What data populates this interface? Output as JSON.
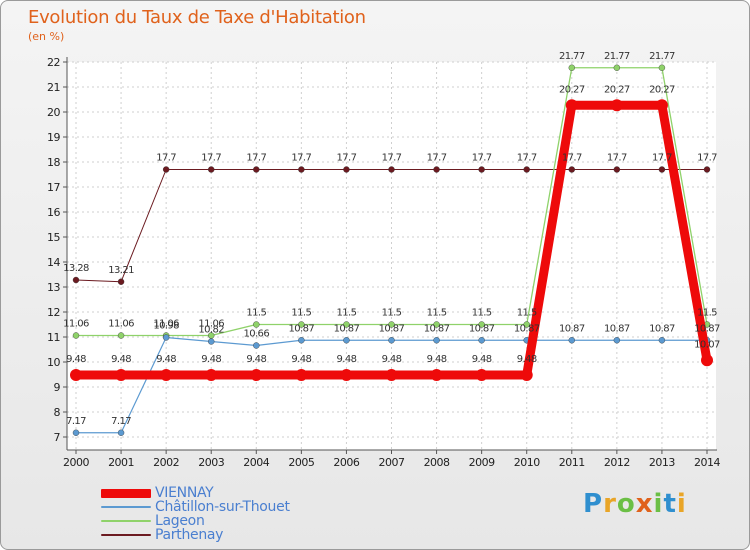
{
  "title": "Evolution du Taux de Taxe d'Habitation",
  "unit": "(en %)",
  "logo": {
    "letters": [
      "P",
      "r",
      "o",
      "x",
      "i",
      "t",
      "i"
    ],
    "colors": [
      "#2f8fcf",
      "#e9a527",
      "#6bbf45",
      "#e0621c",
      "#6bbf45",
      "#2f8fcf",
      "#e9a527"
    ]
  },
  "chart_data": {
    "type": "line",
    "title": "Evolution du Taux de Taxe d'Habitation",
    "ylabel": "(en %)",
    "xlabel": "",
    "x": [
      2000,
      2001,
      2002,
      2003,
      2004,
      2005,
      2006,
      2007,
      2008,
      2009,
      2010,
      2011,
      2012,
      2013,
      2014
    ],
    "ylim": [
      7,
      22
    ],
    "yticks": [
      7,
      8,
      9,
      10,
      11,
      12,
      13,
      14,
      15,
      16,
      17,
      18,
      19,
      20,
      21,
      22
    ],
    "grid": true,
    "legend_position": "bottom-left",
    "series": [
      {
        "name": "Parthenay",
        "color": "#6b1a20",
        "width": 1,
        "values": [
          13.28,
          13.21,
          17.7,
          17.7,
          17.7,
          17.7,
          17.7,
          17.7,
          17.7,
          17.7,
          17.7,
          17.7,
          17.7,
          17.7,
          17.7
        ],
        "labels": [
          "13.28",
          "13.21",
          "17.7",
          "17.7",
          "17.7",
          "17.7",
          "17.7",
          "17.7",
          "17.7",
          "17.7",
          "17.7",
          "17.7",
          "17.7",
          "17.7",
          "17.7"
        ]
      },
      {
        "name": "Lageon",
        "color": "#8fd26a",
        "width": 1.3,
        "values": [
          11.06,
          11.06,
          11.06,
          11.06,
          11.5,
          11.5,
          11.5,
          11.5,
          11.5,
          11.5,
          11.5,
          21.77,
          21.77,
          21.77,
          11.5
        ],
        "labels": [
          "11.06",
          "11.06",
          "11.06",
          "11.06",
          "11.5",
          "11.5",
          "11.5",
          "11.5",
          "11.5",
          "11.5",
          "11.5",
          "21.77",
          "21.77",
          "21.77",
          "11.5"
        ]
      },
      {
        "name": "Châtillon-sur-Thouet",
        "color": "#5c9ad1",
        "width": 1.2,
        "values": [
          7.17,
          7.17,
          10.98,
          10.82,
          10.66,
          10.87,
          10.87,
          10.87,
          10.87,
          10.87,
          10.87,
          10.87,
          10.87,
          10.87,
          10.87
        ],
        "labels": [
          "7.17",
          "7.17",
          "10.98",
          "10.82",
          "10.66",
          "10.87",
          "10.87",
          "10.87",
          "10.87",
          "10.87",
          "10.87",
          "10.87",
          "10.87",
          "10.87",
          "10.87"
        ]
      },
      {
        "name": "VIENNAY",
        "color": "#ee0a0a",
        "width": 9,
        "values": [
          9.48,
          9.48,
          9.48,
          9.48,
          9.48,
          9.48,
          9.48,
          9.48,
          9.48,
          9.48,
          9.48,
          20.27,
          20.27,
          20.27,
          10.07
        ],
        "labels": [
          "9.48",
          "9.48",
          "9.48",
          "9.48",
          "9.48",
          "9.48",
          "9.48",
          "9.48",
          "9.48",
          "9.48",
          "9.48",
          "20.27",
          "20.27",
          "20.27",
          "10.07"
        ]
      }
    ],
    "legend": [
      "VIENNAY",
      "Châtillon-sur-Thouet",
      "Lageon",
      "Parthenay"
    ]
  }
}
